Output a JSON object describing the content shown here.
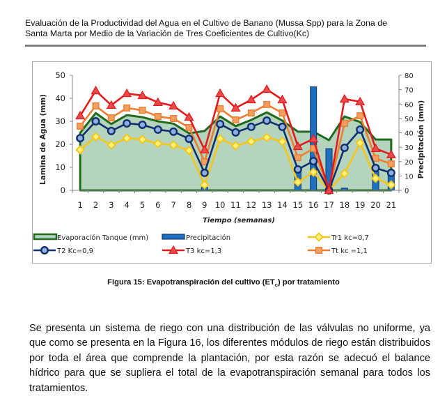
{
  "header": {
    "line1": "Evaluación de la Productividad del Agua en el Cultivo de Banano (Mussa Spp) para la Zona de",
    "line2": "Santa Marta por Medio de la Variación de Tres Coeficientes de Cultivo(Kc)"
  },
  "caption": {
    "prefix": "Figura 15: Evapotranspiración del cultivo (ET",
    "subscript": "c",
    "suffix": ") por tratamiento"
  },
  "body_text": "Se presenta un sistema de riego con una distribución de las válvulas no uniforme, ya que como se presenta en la Figura 16, los diferentes módulos de riego están distribuidos por toda el área que comprende la plantación, por esta razón se adecuó el balance hídrico para que se supliera el total de la evapotranspiración semanal para todos los tratamientos.",
  "chart_data": {
    "type": "line",
    "title": "",
    "xlabel": "Tiempo (semanas)",
    "ylabel": "Lamina de Agua (mm)",
    "y2label": "Precipitación (mm)",
    "ylim": [
      0,
      50
    ],
    "y2lim": [
      0,
      80
    ],
    "yticks": [
      0,
      10,
      20,
      30,
      40,
      50
    ],
    "y2ticks": [
      0,
      10,
      20,
      30,
      40,
      50,
      60,
      70,
      80
    ],
    "categories": [
      "1",
      "2",
      "3",
      "4",
      "5",
      "6",
      "7",
      "8",
      "9",
      "10",
      "11",
      "12",
      "13",
      "14",
      "15",
      "16",
      "17",
      "18",
      "19",
      "20",
      "21"
    ],
    "grid": false,
    "legend_position": "bottom",
    "series": [
      {
        "name": "Evaporación Tanque (mm)",
        "kind": "area",
        "axis": "left",
        "color": "#1e6b1e",
        "fill": "#b5d4bd",
        "values": [
          25.0,
          33.6,
          28.8,
          32.7,
          31.8,
          30.0,
          29.0,
          24.8,
          25.8,
          32.1,
          27.9,
          30.6,
          33.9,
          30.3,
          25.5,
          25.5,
          21.8,
          32.1,
          29.7,
          22.1,
          22.1
        ]
      },
      {
        "name": "Precipitación",
        "kind": "bar",
        "axis": "right",
        "color": "#1f6fbf",
        "edge": "#0d3a70",
        "values": [
          0,
          0,
          0,
          0,
          0,
          0,
          0,
          0,
          2,
          0,
          0,
          0,
          0,
          0,
          14,
          72,
          29,
          1.5,
          0,
          13,
          13
        ]
      },
      {
        "name": "Tr1 kc=0,7",
        "kind": "line",
        "marker": "diamond",
        "axis": "left",
        "color": "#f5c518",
        "values": [
          17.6,
          23.3,
          19.7,
          22.7,
          22.1,
          20.3,
          19.7,
          17.3,
          2.4,
          22.4,
          19.4,
          21.2,
          23.0,
          21.2,
          3.6,
          7.9,
          0,
          7.3,
          20.6,
          5.2,
          2.4
        ]
      },
      {
        "name": "T2  Kc=0,9",
        "kind": "line",
        "marker": "circle",
        "axis": "left",
        "color": "#0f2f6e",
        "values": [
          22.7,
          30.0,
          25.8,
          29.1,
          28.5,
          26.4,
          25.5,
          22.4,
          7.6,
          28.8,
          25.2,
          27.6,
          30.3,
          27.6,
          9.1,
          12.7,
          0,
          18.5,
          26.4,
          9.7,
          7.6
        ]
      },
      {
        "name": "T3  kc=1,3",
        "kind": "line",
        "marker": "triangle",
        "axis": "left",
        "color": "#e31a1c",
        "values": [
          32.4,
          43.3,
          37.0,
          42.1,
          41.2,
          38.2,
          36.7,
          31.8,
          17.6,
          42.1,
          35.8,
          39.4,
          43.9,
          39.4,
          19.1,
          22.4,
          0,
          39.7,
          38.5,
          18.2,
          15.5
        ]
      },
      {
        "name": "Tt  kc =1,1",
        "kind": "line",
        "marker": "square",
        "axis": "left",
        "color": "#ed7d31",
        "values": [
          27.9,
          36.7,
          31.5,
          35.8,
          34.8,
          32.1,
          31.2,
          27.3,
          12.4,
          35.5,
          30.6,
          33.6,
          37.3,
          33.6,
          14.2,
          18.2,
          0,
          29.1,
          32.4,
          13.9,
          11.5
        ]
      }
    ]
  }
}
